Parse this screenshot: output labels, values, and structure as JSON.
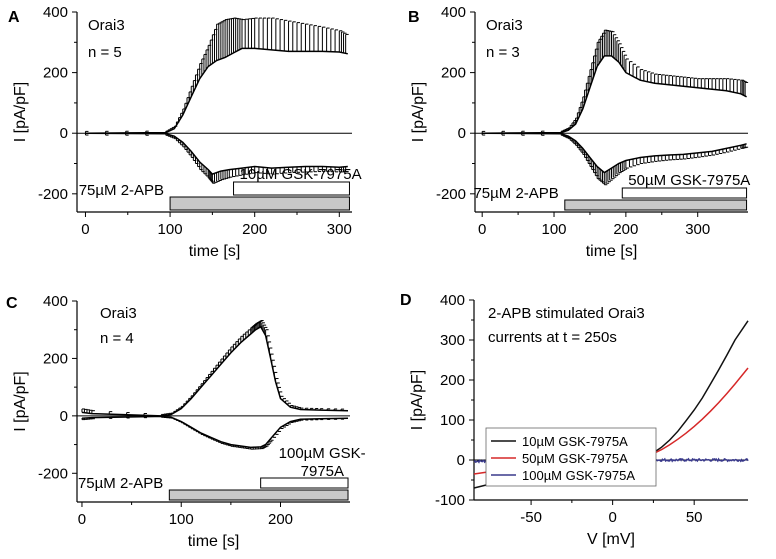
{
  "chart_data": [
    {
      "type": "line",
      "panel": "A",
      "annotations": [
        "Orai3",
        "n = 5"
      ],
      "xlabel": "time [s]",
      "ylabel": "I [pA/pF]",
      "xlim": [
        -10,
        315
      ],
      "ylim": [
        -260,
        400
      ],
      "xticks": [
        0,
        100,
        200,
        300
      ],
      "yticks": [
        -200,
        0,
        200,
        400
      ],
      "bars": [
        {
          "label": "75µM 2-APB",
          "start": 100,
          "end": 312,
          "filled": true
        },
        {
          "label": "10µM GSK-7975A",
          "start": 175,
          "end": 312,
          "filled": false
        }
      ],
      "series": [
        {
          "name": "outward",
          "x": [
            0,
            95,
            105,
            115,
            125,
            135,
            145,
            155,
            165,
            175,
            185,
            200,
            220,
            240,
            260,
            280,
            300,
            310
          ],
          "y": [
            0,
            2,
            15,
            60,
            120,
            180,
            220,
            240,
            250,
            265,
            280,
            280,
            275,
            270,
            270,
            270,
            268,
            262
          ],
          "err": [
            6,
            5,
            8,
            20,
            35,
            50,
            70,
            120,
            125,
            115,
            95,
            100,
            105,
            100,
            90,
            80,
            70,
            60
          ]
        },
        {
          "name": "inward",
          "x": [
            0,
            95,
            105,
            115,
            125,
            135,
            145,
            150,
            160,
            170,
            185,
            200,
            220,
            240,
            260,
            280,
            300,
            310
          ],
          "y": [
            0,
            -2,
            -10,
            -30,
            -60,
            -95,
            -120,
            -135,
            -125,
            -120,
            -115,
            -110,
            -115,
            -112,
            -110,
            -110,
            -112,
            -110
          ],
          "err": [
            6,
            5,
            8,
            15,
            20,
            25,
            28,
            30,
            28,
            25,
            22,
            20,
            20,
            18,
            18,
            16,
            16,
            16
          ]
        }
      ]
    },
    {
      "type": "line",
      "panel": "B",
      "annotations": [
        "Orai3",
        "n = 3"
      ],
      "xlabel": "time [s]",
      "ylabel": "I [pA/pF]",
      "xlim": [
        -10,
        370
      ],
      "ylim": [
        -260,
        400
      ],
      "xticks": [
        0,
        100,
        200,
        300
      ],
      "yticks": [
        -200,
        0,
        200,
        400
      ],
      "bars": [
        {
          "label": "75µM 2-APB",
          "start": 115,
          "end": 368,
          "filled": true
        },
        {
          "label": "50µM GSK-7975A",
          "start": 195,
          "end": 368,
          "filled": false
        }
      ],
      "series": [
        {
          "name": "outward",
          "x": [
            0,
            110,
            120,
            130,
            140,
            150,
            160,
            170,
            180,
            190,
            200,
            220,
            240,
            260,
            280,
            300,
            320,
            340,
            360,
            368
          ],
          "y": [
            0,
            2,
            10,
            30,
            80,
            150,
            220,
            255,
            255,
            235,
            200,
            175,
            165,
            160,
            155,
            150,
            145,
            140,
            130,
            120
          ],
          "err": [
            6,
            5,
            8,
            20,
            40,
            60,
            80,
            85,
            80,
            60,
            45,
            35,
            30,
            30,
            30,
            30,
            35,
            40,
            45,
            45
          ]
        },
        {
          "name": "inward",
          "x": [
            0,
            110,
            120,
            130,
            140,
            150,
            160,
            170,
            180,
            190,
            200,
            220,
            240,
            260,
            280,
            300,
            320,
            340,
            360,
            368
          ],
          "y": [
            0,
            -2,
            -10,
            -25,
            -50,
            -80,
            -110,
            -130,
            -115,
            -100,
            -90,
            -80,
            -75,
            -72,
            -70,
            -65,
            -60,
            -50,
            -40,
            -35
          ],
          "err": [
            6,
            5,
            8,
            15,
            20,
            30,
            40,
            40,
            35,
            30,
            25,
            20,
            18,
            16,
            15,
            14,
            12,
            12,
            10,
            10
          ]
        }
      ]
    },
    {
      "type": "line",
      "panel": "C",
      "annotations": [
        "Orai3",
        "n = 4"
      ],
      "xlabel": "time [s]",
      "ylabel": "I [pA/pF]",
      "xlim": [
        -5,
        270
      ],
      "ylim": [
        -300,
        400
      ],
      "xticks": [
        0,
        100,
        200
      ],
      "yticks": [
        -200,
        0,
        200,
        400
      ],
      "bars": [
        {
          "label": "75µM 2-APB",
          "start": 88,
          "end": 268,
          "filled": true
        },
        {
          "label": "100µM GSK-7975A",
          "start": 180,
          "end": 268,
          "filled": false
        }
      ],
      "series": [
        {
          "name": "outward",
          "x": [
            0,
            10,
            80,
            90,
            100,
            110,
            120,
            130,
            140,
            150,
            160,
            170,
            175,
            180,
            185,
            190,
            195,
            200,
            210,
            220,
            240,
            268
          ],
          "y": [
            12,
            8,
            0,
            5,
            25,
            60,
            100,
            140,
            180,
            220,
            255,
            285,
            300,
            310,
            280,
            200,
            120,
            60,
            30,
            22,
            20,
            18
          ],
          "err": [
            12,
            10,
            5,
            5,
            8,
            10,
            12,
            15,
            18,
            20,
            22,
            22,
            22,
            22,
            20,
            15,
            10,
            8,
            6,
            5,
            5,
            5
          ]
        },
        {
          "name": "inward",
          "x": [
            0,
            10,
            80,
            90,
            100,
            110,
            120,
            130,
            140,
            150,
            160,
            170,
            180,
            185,
            190,
            200,
            210,
            220,
            240,
            268
          ],
          "y": [
            -8,
            -6,
            -2,
            -5,
            -20,
            -40,
            -60,
            -75,
            -90,
            -100,
            -105,
            -110,
            -108,
            -100,
            -80,
            -40,
            -20,
            -12,
            -10,
            -8
          ],
          "err": [
            5,
            4,
            3,
            3,
            4,
            5,
            5,
            6,
            6,
            6,
            6,
            6,
            6,
            5,
            5,
            4,
            3,
            3,
            3,
            3
          ]
        }
      ]
    },
    {
      "type": "line",
      "panel": "D",
      "annotations": [
        "2-APB stimulated Orai3",
        "currents at t = 250s"
      ],
      "xlabel": "V [mV]",
      "ylabel": "I [pA/pF]",
      "xlim": [
        -85,
        83
      ],
      "ylim": [
        -100,
        400
      ],
      "xticks": [
        -50,
        0,
        50
      ],
      "yticks": [
        -100,
        0,
        100,
        200,
        300,
        400
      ],
      "legend": "middle-left",
      "series": [
        {
          "name": "10µM GSK-7975A",
          "color": "#111111",
          "x": [
            -85,
            -75,
            -65,
            -55,
            -45,
            -35,
            -25,
            -15,
            -5,
            5,
            10,
            15,
            20,
            25,
            30,
            35,
            40,
            45,
            50,
            55,
            60,
            65,
            70,
            75,
            83
          ],
          "y": [
            -70,
            -60,
            -52,
            -45,
            -38,
            -32,
            -27,
            -22,
            -18,
            -12,
            -8,
            -2,
            6,
            18,
            32,
            50,
            72,
            98,
            125,
            155,
            190,
            225,
            262,
            300,
            348
          ]
        },
        {
          "name": "50µM GSK-7975A",
          "color": "#d62828",
          "x": [
            -85,
            -75,
            -65,
            -55,
            -45,
            -35,
            -25,
            -15,
            -5,
            5,
            15,
            20,
            25,
            30,
            35,
            40,
            45,
            50,
            55,
            60,
            65,
            70,
            75,
            83
          ],
          "y": [
            -35,
            -29,
            -24,
            -20,
            -16,
            -13,
            -10,
            -8,
            -6,
            -3,
            2,
            8,
            16,
            26,
            38,
            52,
            67,
            84,
            102,
            122,
            143,
            166,
            190,
            230
          ]
        },
        {
          "name": "100µM GSK-7975A",
          "color": "#3a3a8c",
          "x": [
            -85,
            -60,
            -40,
            -20,
            0,
            20,
            40,
            60,
            83
          ],
          "y": [
            -3,
            -2,
            -2,
            -1,
            0,
            0,
            0,
            0,
            0
          ],
          "noisy": true
        }
      ]
    }
  ],
  "panel_labels": [
    "A",
    "B",
    "C",
    "D"
  ]
}
